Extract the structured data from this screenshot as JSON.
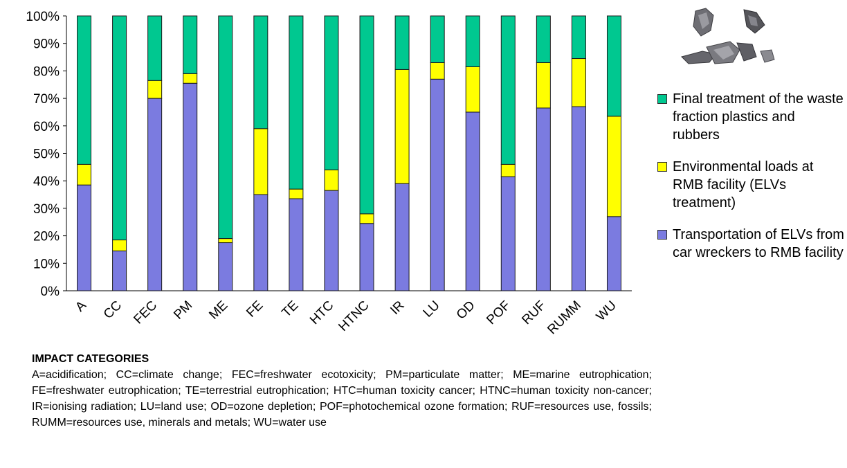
{
  "chart_data": {
    "type": "bar",
    "stacked": true,
    "categories": [
      "A",
      "CC",
      "FEC",
      "PM",
      "ME",
      "FE",
      "TE",
      "HTC",
      "HTNC",
      "IR",
      "LU",
      "OD",
      "POF",
      "RUF",
      "RUMM",
      "WU"
    ],
    "y_ticks": [
      "0%",
      "10%",
      "20%",
      "30%",
      "40%",
      "50%",
      "60%",
      "70%",
      "80%",
      "90%",
      "100%"
    ],
    "ylim": [
      0,
      100
    ],
    "series": [
      {
        "name": "Transportation of ELVs from car wreckers to RMB facility",
        "color": "#7b7be0",
        "values": [
          38.5,
          14.5,
          70,
          75.5,
          17.5,
          35,
          33.5,
          36.5,
          24.5,
          39,
          77,
          65,
          41.5,
          66.5,
          67,
          27
        ]
      },
      {
        "name": "Environmental loads at RMB facility (ELVs treatment)",
        "color": "#ffff00",
        "values": [
          7.5,
          4,
          6.5,
          3.5,
          1.5,
          24,
          3.5,
          7.5,
          3.5,
          41.5,
          6,
          16.5,
          4.5,
          16.5,
          17.5,
          36.5
        ]
      },
      {
        "name": "Final treatment of the waste fraction plastics and rubbers",
        "color": "#00c890",
        "values": [
          54,
          81.5,
          23.5,
          21,
          81,
          41,
          63,
          56,
          72,
          19.5,
          17,
          18.5,
          54,
          17,
          15.5,
          36.5
        ]
      }
    ],
    "legend": {
      "placement": "right",
      "items": [
        {
          "label": "Final treatment of the waste fraction plastics and rubbers",
          "color": "#00c890"
        },
        {
          "label": "Environmental loads at RMB facility (ELVs treatment)",
          "color": "#ffff00"
        },
        {
          "label": "Transportation of ELVs from car wreckers to RMB facility",
          "color": "#7b7be0"
        }
      ]
    },
    "grid": false
  },
  "notes": {
    "title": "IMPACT CATEGORIES",
    "text": "A=acidification; CC=climate change; FEC=freshwater ecotoxicity; PM=particulate matter; ME=marine eutrophication; FE=freshwater eutrophication; TE=terrestrial eutrophication; HTC=human toxicity cancer; HTNC=human toxicity non-cancer; IR=ionising radiation; LU=land use; OD=ozone depletion; POF=photochemical ozone formation; RUF=resources use, fossils; RUMM=resources use, minerals and metals; WU=water use"
  },
  "image": {
    "icon": "plastic-scrap-photo"
  }
}
